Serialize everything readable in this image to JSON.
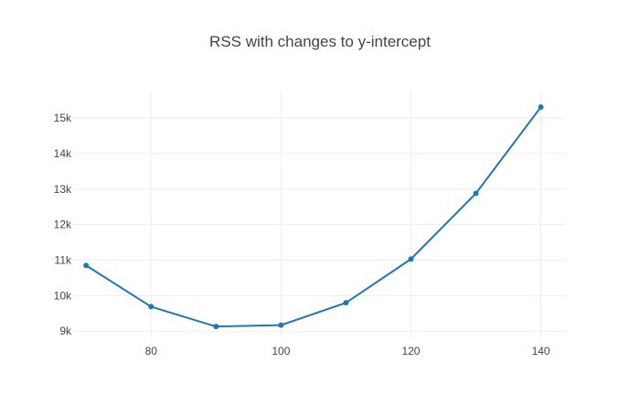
{
  "chart_data": {
    "type": "line",
    "title": "RSS with changes to y-intercept",
    "xlabel": "",
    "ylabel": "",
    "x": [
      70,
      80,
      90,
      100,
      110,
      120,
      130,
      140
    ],
    "series": [
      {
        "values": [
          10850,
          9690,
          9130,
          9170,
          9800,
          11030,
          12880,
          15310
        ],
        "color": "#1f77b4"
      }
    ],
    "xlim": [
      68,
      144
    ],
    "ylim": [
      8800,
      15750
    ],
    "x_ticks": [
      80,
      100,
      120,
      140
    ],
    "x_tick_labels": [
      "80",
      "100",
      "120",
      "140"
    ],
    "y_ticks": [
      9000,
      10000,
      11000,
      12000,
      13000,
      14000,
      15000
    ],
    "y_tick_labels": [
      "9k",
      "10k",
      "11k",
      "12k",
      "13k",
      "14k",
      "15k"
    ],
    "grid": true,
    "legend": false,
    "line_color": "#1f77b4",
    "grid_color": "#eeeeee"
  }
}
